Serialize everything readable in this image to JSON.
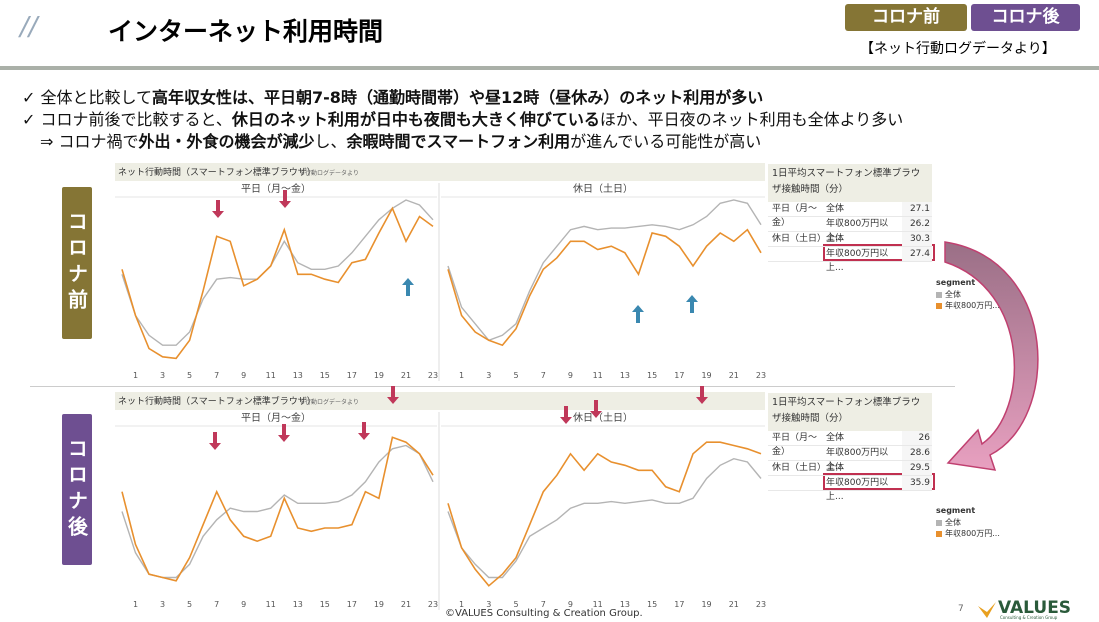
{
  "header": {
    "title": "インターネット利用時間",
    "badges": [
      "コロナ前",
      "コロナ後"
    ],
    "source": "【ネット行動ログデータより】"
  },
  "bullets": [
    [
      {
        "text": "✓ "
      },
      {
        "text": "全体と比較して"
      },
      {
        "text": "高年収女性は、平日朝7-8時（通勤時間帯）や昼12時（昼休み）のネット利用が多い",
        "bold": true
      }
    ],
    [
      {
        "text": "✓ "
      },
      {
        "text": "コロナ前後で比較すると、"
      },
      {
        "text": "休日のネット利用が日中も夜間も大きく伸びている",
        "bold": true
      },
      {
        "text": "ほか、平日夜のネット利用も全体より多い"
      }
    ],
    [
      {
        "text": "⇒ "
      },
      {
        "text": "コロナ禍で"
      },
      {
        "text": "外出・外食の機会が減少",
        "bold": true
      },
      {
        "text": "し、"
      },
      {
        "text": "余暇時間でスマートフォン利用",
        "bold": true
      },
      {
        "text": "が進んでいる可能性が高い"
      }
    ]
  ],
  "chart_data": [
    {
      "type": "line",
      "label": "コロナ前",
      "title": "ネット行動時間（スマートフォン標準ブラウザ）",
      "note": "※行動ログデータより",
      "x": [
        0,
        1,
        2,
        3,
        4,
        5,
        6,
        7,
        8,
        9,
        10,
        11,
        12,
        13,
        14,
        15,
        16,
        17,
        18,
        19,
        20,
        21,
        22,
        23
      ],
      "xlim": [
        0,
        23
      ],
      "xticks": [
        1,
        3,
        5,
        7,
        9,
        11,
        13,
        15,
        17,
        19,
        21,
        23
      ],
      "ylim": [
        0,
        100
      ],
      "legend_title": "segment",
      "series": [
        {
          "name": "全体",
          "color": "#b4b4b4"
        },
        {
          "name": "年収800万円...",
          "color": "#e8902e"
        }
      ],
      "panels": [
        {
          "title": "平日（月～金）",
          "values": [
            [
              55,
              30,
              18,
              12,
              12,
              20,
              40,
              52,
              53,
              52,
              52,
              60,
              75,
              62,
              58,
              58,
              60,
              68,
              78,
              88,
              95,
              100,
              97,
              88
            ],
            [
              58,
              30,
              10,
              5,
              4,
              15,
              45,
              78,
              75,
              48,
              52,
              60,
              82,
              55,
              55,
              52,
              50,
              62,
              64,
              80,
              95,
              75,
              90,
              84
            ]
          ]
        },
        {
          "title": "休日（土日）",
          "values": [
            [
              60,
              35,
              25,
              15,
              18,
              25,
              45,
              62,
              72,
              82,
              84,
              82,
              83,
              83,
              84,
              85,
              84,
              82,
              85,
              90,
              98,
              100,
              98,
              85
            ],
            [
              58,
              30,
              20,
              15,
              12,
              22,
              42,
              58,
              65,
              75,
              75,
              70,
              72,
              68,
              55,
              80,
              78,
              72,
              60,
              72,
              80,
              75,
              82,
              68
            ]
          ]
        }
      ],
      "table": {
        "title": "1日平均スマートフォン標準ブラウザ接触時間（分）",
        "groups": [
          {
            "group": "平日（月～金）",
            "items": [
              {
                "label": "全体",
                "value": 27.1
              },
              {
                "label": "年収800万円以上...",
                "value": 26.2
              }
            ]
          },
          {
            "group": "休日（土日）",
            "items": [
              {
                "label": "全体",
                "value": 30.3
              },
              {
                "label": "年収800万円以上...",
                "value": 27.4
              }
            ]
          }
        ]
      }
    },
    {
      "type": "line",
      "label": "コロナ後",
      "title": "ネット行動時間（スマートフォン標準ブラウザ）",
      "note": "※行動ログデータより",
      "x": [
        0,
        1,
        2,
        3,
        4,
        5,
        6,
        7,
        8,
        9,
        10,
        11,
        12,
        13,
        14,
        15,
        16,
        17,
        18,
        19,
        20,
        21,
        22,
        23
      ],
      "xlim": [
        0,
        23
      ],
      "xticks": [
        1,
        3,
        5,
        7,
        9,
        11,
        13,
        15,
        17,
        19,
        21,
        23
      ],
      "ylim": [
        0,
        100
      ],
      "legend_title": "segment",
      "series": [
        {
          "name": "全体",
          "color": "#b4b4b4"
        },
        {
          "name": "年収800万円...",
          "color": "#e8902e"
        }
      ],
      "panels": [
        {
          "title": "平日（月～金）",
          "values": [
            [
              50,
              25,
              12,
              10,
              10,
              18,
              35,
              45,
              52,
              50,
              50,
              52,
              60,
              55,
              55,
              55,
              56,
              60,
              68,
              80,
              88,
              90,
              85,
              68
            ],
            [
              62,
              30,
              12,
              10,
              8,
              22,
              42,
              62,
              45,
              35,
              32,
              35,
              58,
              40,
              38,
              40,
              40,
              42,
              62,
              58,
              95,
              92,
              85,
              72
            ]
          ]
        },
        {
          "title": "休日（土日）",
          "values": [
            [
              50,
              28,
              18,
              10,
              10,
              20,
              35,
              40,
              45,
              52,
              55,
              55,
              56,
              55,
              56,
              57,
              55,
              55,
              58,
              70,
              78,
              82,
              80,
              70
            ],
            [
              55,
              28,
              15,
              5,
              12,
              22,
              42,
              62,
              72,
              85,
              75,
              85,
              80,
              78,
              75,
              75,
              65,
              62,
              85,
              92,
              92,
              90,
              88,
              85
            ]
          ]
        }
      ],
      "table": {
        "title": "1日平均スマートフォン標準ブラウザ接触時間（分）",
        "groups": [
          {
            "group": "平日（月～金）",
            "items": [
              {
                "label": "全体",
                "value": 26.0
              },
              {
                "label": "年収800万円以上...",
                "value": 28.6
              }
            ]
          },
          {
            "group": "休日（土日）",
            "items": [
              {
                "label": "全体",
                "value": 29.5
              },
              {
                "label": "年収800万円以上...",
                "value": 35.9
              }
            ]
          }
        ]
      }
    }
  ],
  "footer": {
    "copyright": "©VALUES Consulting & Creation Group.",
    "page": "7",
    "logo": "VALUES",
    "logo_sub": "Consulting & Creation Group"
  }
}
